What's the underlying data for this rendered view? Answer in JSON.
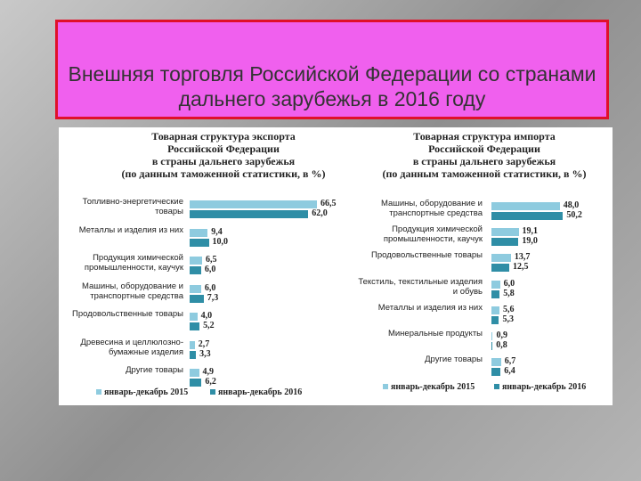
{
  "slide_title": "Внешняя торговля Российской Федерации со странами дальнего зарубежья в 2016 году",
  "chart_data": [
    {
      "type": "barh",
      "title": [
        "Товарная структура экспорта",
        "Российской Федерации",
        "в страны дальнего зарубежья",
        "(по данным таможенной статистики, в %)"
      ],
      "categories": [
        "Топливно-энергетические товары",
        "Металлы и изделия из них",
        "Продукция химической промышленности, каучук",
        "Машины, оборудование и транспортные средства",
        "Продовольственные товары",
        "Древесина и целлюлозно-бумажные изделия",
        "Другие товары"
      ],
      "series": [
        {
          "name": "январь-декабрь 2015",
          "color": "#8ecbdf",
          "values": [
            66.5,
            9.4,
            6.5,
            6.0,
            4.0,
            2.7,
            4.9
          ],
          "value_labels": [
            "66,5",
            "9,4",
            "6,5",
            "6,0",
            "4,0",
            "2,7",
            "4,9"
          ]
        },
        {
          "name": "январь-декабрь 2016",
          "color": "#2f8ea6",
          "values": [
            62.0,
            10.0,
            6.0,
            7.3,
            5.2,
            3.3,
            6.2
          ],
          "value_labels": [
            "62,0",
            "10,0",
            "6,0",
            "7,3",
            "5,2",
            "3,3",
            "6,2"
          ]
        }
      ]
    },
    {
      "type": "barh",
      "title": [
        "Товарная структура импорта",
        "Российской Федерации",
        "в страны дальнего зарубежья",
        "(по данным таможенной статистики, в %)"
      ],
      "categories": [
        "Машины, оборудование и транспортные средства",
        "Продукция химической промышленности, каучук",
        "Продовольственные товары",
        "Текстиль, текстильные изделия и обувь",
        "Металлы и изделия из них",
        "Минеральные продукты",
        "Другие товары"
      ],
      "series": [
        {
          "name": "январь-декабрь 2015",
          "color": "#8ecbdf",
          "values": [
            48.0,
            19.1,
            13.7,
            6.0,
            5.6,
            0.9,
            6.7
          ],
          "value_labels": [
            "48,0",
            "19,1",
            "13,7",
            "6,0",
            "5,6",
            "0,9",
            "6,7"
          ]
        },
        {
          "name": "январь-декабрь 2016",
          "color": "#2f8ea6",
          "values": [
            50.2,
            19.0,
            12.5,
            5.8,
            5.3,
            0.8,
            6.4
          ],
          "value_labels": [
            "50,2",
            "19,0",
            "12,5",
            "5,8",
            "5,3",
            "0,8",
            "6,4"
          ]
        }
      ]
    }
  ]
}
